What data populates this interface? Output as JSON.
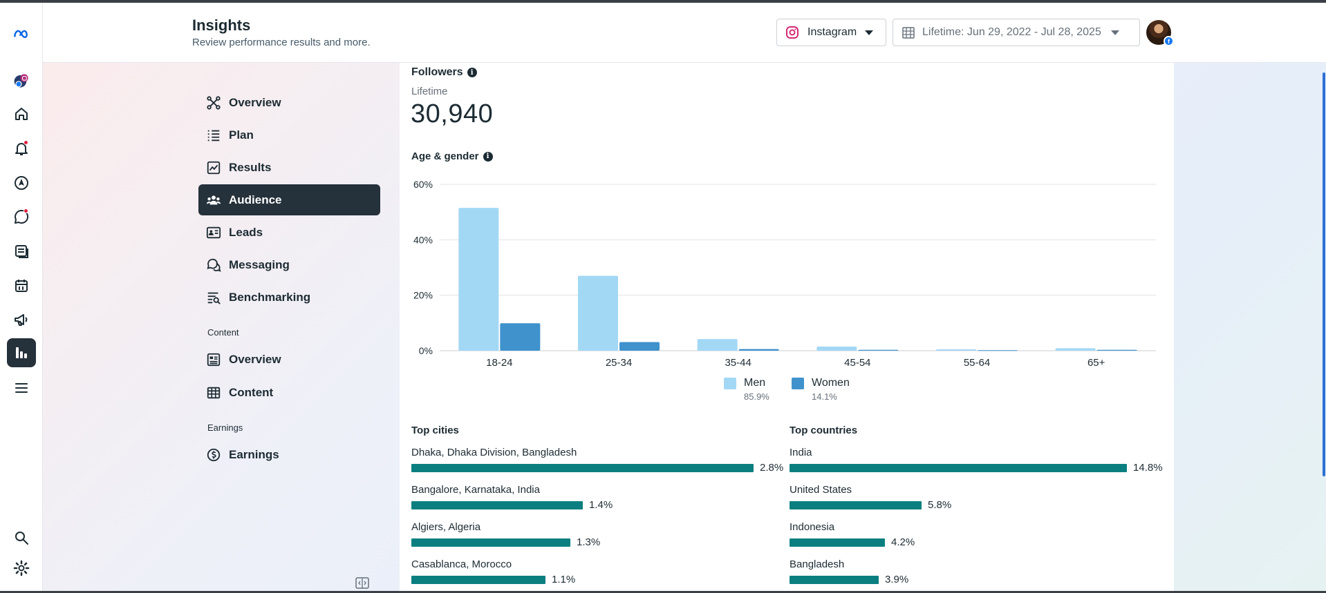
{
  "header": {
    "title": "Insights",
    "subtitle": "Review performance results and more.",
    "platform_select": "Instagram",
    "date_range": "Lifetime: Jun 29, 2022 - Jul 28, 2025"
  },
  "rail": {
    "items": [
      "meta-logo",
      "account-switcher",
      "home",
      "notifications",
      "planner",
      "inbox",
      "content",
      "calendar",
      "ads",
      "insights",
      "all-tools",
      "search",
      "settings"
    ]
  },
  "nav": {
    "items": [
      {
        "label": "Overview",
        "icon": "overview-icon"
      },
      {
        "label": "Plan",
        "icon": "plan-icon"
      },
      {
        "label": "Results",
        "icon": "results-icon"
      },
      {
        "label": "Audience",
        "icon": "audience-icon",
        "active": true
      },
      {
        "label": "Leads",
        "icon": "leads-icon"
      },
      {
        "label": "Messaging",
        "icon": "messaging-icon"
      },
      {
        "label": "Benchmarking",
        "icon": "benchmarking-icon"
      }
    ],
    "content_section": "Content",
    "content_items": [
      {
        "label": "Overview",
        "icon": "content-overview-icon"
      },
      {
        "label": "Content",
        "icon": "content-table-icon"
      }
    ],
    "earnings_section": "Earnings",
    "earnings_items": [
      {
        "label": "Earnings",
        "icon": "earnings-icon"
      }
    ]
  },
  "followers": {
    "title": "Followers",
    "period": "Lifetime",
    "count": "30,940"
  },
  "age_gender": {
    "title": "Age & gender",
    "legend": [
      {
        "name": "Men",
        "pct": "85.9%",
        "color": "#a3d8f5"
      },
      {
        "name": "Women",
        "pct": "14.1%",
        "color": "#3f92cc"
      }
    ]
  },
  "chart_data": {
    "type": "bar",
    "title": "Age & gender",
    "categories": [
      "18-24",
      "25-34",
      "35-44",
      "45-54",
      "55-64",
      "65+"
    ],
    "series": [
      {
        "name": "Men",
        "values": [
          51.5,
          27.0,
          4.2,
          1.5,
          0.5,
          0.9
        ]
      },
      {
        "name": "Women",
        "values": [
          9.9,
          3.1,
          0.6,
          0.3,
          0.2,
          0.3
        ]
      }
    ],
    "yticks": [
      "0%",
      "20%",
      "40%",
      "60%"
    ],
    "ylim": [
      0,
      60
    ],
    "grid": true
  },
  "top_cities": {
    "title": "Top cities",
    "rows": [
      {
        "name": "Dhaka, Dhaka Division, Bangladesh",
        "value": "2.8%",
        "pct": 2.8
      },
      {
        "name": "Bangalore, Karnataka, India",
        "value": "1.4%",
        "pct": 1.4
      },
      {
        "name": "Algiers, Algeria",
        "value": "1.3%",
        "pct": 1.3
      },
      {
        "name": "Casablanca, Morocco",
        "value": "1.1%",
        "pct": 1.1
      }
    ]
  },
  "top_countries": {
    "title": "Top countries",
    "rows": [
      {
        "name": "India",
        "value": "14.8%",
        "pct": 14.8
      },
      {
        "name": "United States",
        "value": "5.8%",
        "pct": 5.8
      },
      {
        "name": "Indonesia",
        "value": "4.2%",
        "pct": 4.2
      },
      {
        "name": "Bangladesh",
        "value": "3.9%",
        "pct": 3.9
      }
    ]
  }
}
